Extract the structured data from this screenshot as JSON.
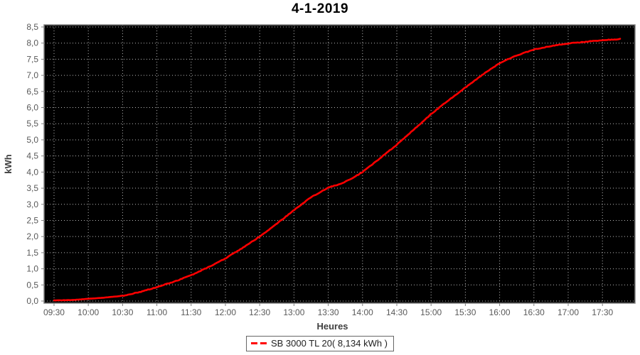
{
  "chart_data": {
    "type": "line",
    "title": "4-1-2019",
    "xlabel": "Heures",
    "ylabel": "kWh",
    "plot_bg": "#000000",
    "grid": "dotted",
    "grid_color": "#b8b8b8",
    "axis_color": "#808080",
    "tick_label_color": "#595959",
    "axis_title_color": "#3f3f3f",
    "legend_position": "bottom",
    "xlim": [
      9.355,
      17.975
    ],
    "ylim": [
      0,
      8.5
    ],
    "x_tick_hours": [
      9.5,
      10.0,
      10.5,
      11.0,
      11.5,
      12.0,
      12.5,
      13.0,
      13.5,
      14.0,
      14.5,
      15.0,
      15.5,
      16.0,
      16.5,
      17.0,
      17.5
    ],
    "x_tick_labels": [
      "09:30",
      "10:00",
      "10:30",
      "11:00",
      "11:30",
      "12:00",
      "12:30",
      "13:00",
      "13:30",
      "14:00",
      "14:30",
      "15:00",
      "15:30",
      "16:00",
      "16:30",
      "17:00",
      "17:30"
    ],
    "y_tick_values": [
      0,
      0.5,
      1,
      1.5,
      2,
      2.5,
      3,
      3.5,
      4,
      4.5,
      5,
      5.5,
      6,
      6.5,
      7,
      7.5,
      8,
      8.5
    ],
    "y_tick_labels": [
      "0,0",
      "0,5",
      "1,0",
      "1,5",
      "2,0",
      "2,5",
      "3,0",
      "3,5",
      "4,0",
      "4,5",
      "5,0",
      "5,5",
      "6,0",
      "6,5",
      "7,0",
      "7,5",
      "8,0",
      "8,5"
    ],
    "series": [
      {
        "name": "SB 3000 TL 20( 8,134 kWh )",
        "color": "#ff0000",
        "total_kwh_label": "8,134 kWh",
        "points": [
          [
            9.5,
            0.02
          ],
          [
            9.75,
            0.03
          ],
          [
            10.0,
            0.07
          ],
          [
            10.25,
            0.11
          ],
          [
            10.5,
            0.16
          ],
          [
            10.75,
            0.28
          ],
          [
            11.0,
            0.43
          ],
          [
            11.25,
            0.6
          ],
          [
            11.5,
            0.8
          ],
          [
            11.75,
            1.05
          ],
          [
            12.0,
            1.32
          ],
          [
            12.25,
            1.65
          ],
          [
            12.5,
            2.0
          ],
          [
            12.75,
            2.4
          ],
          [
            13.0,
            2.82
          ],
          [
            13.25,
            3.22
          ],
          [
            13.5,
            3.52
          ],
          [
            13.67,
            3.63
          ],
          [
            13.83,
            3.78
          ],
          [
            14.0,
            4.0
          ],
          [
            14.25,
            4.42
          ],
          [
            14.5,
            4.85
          ],
          [
            14.75,
            5.32
          ],
          [
            15.0,
            5.8
          ],
          [
            15.25,
            6.22
          ],
          [
            15.5,
            6.62
          ],
          [
            15.75,
            7.02
          ],
          [
            16.0,
            7.38
          ],
          [
            16.25,
            7.62
          ],
          [
            16.5,
            7.8
          ],
          [
            16.75,
            7.91
          ],
          [
            17.0,
            7.99
          ],
          [
            17.25,
            8.04
          ],
          [
            17.5,
            8.09
          ],
          [
            17.65,
            8.11
          ],
          [
            17.77,
            8.13
          ]
        ]
      }
    ]
  }
}
